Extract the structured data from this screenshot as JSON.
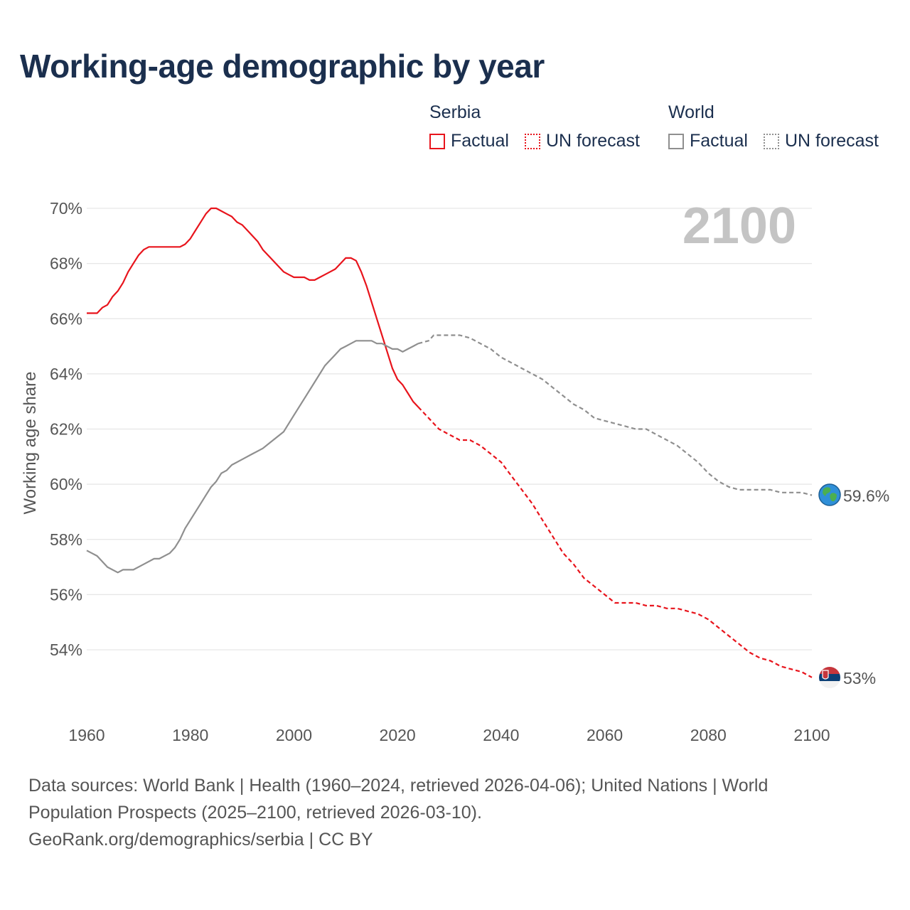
{
  "title": "Working-age demographic by year",
  "legend": {
    "groups": [
      {
        "name": "Serbia",
        "factual": "Factual",
        "forecast": "UN forecast"
      },
      {
        "name": "World",
        "factual": "Factual",
        "forecast": "UN forecast"
      }
    ]
  },
  "colors": {
    "serbia": "#e8141c",
    "world": "#8f8f8f",
    "title": "#1b2f4e"
  },
  "chart_data": {
    "type": "line",
    "title": "Working-age demographic by year",
    "xlabel": "",
    "ylabel": "Working age share",
    "xlim": [
      1960,
      2100
    ],
    "ylim": [
      52,
      70.5
    ],
    "x_ticks": [
      1960,
      1980,
      2000,
      2020,
      2040,
      2060,
      2080,
      2100
    ],
    "x_tick_labels": [
      "1960",
      "1980",
      "2000",
      "2020",
      "2040",
      "2060",
      "2080",
      "2100"
    ],
    "y_ticks": [
      54,
      56,
      58,
      60,
      62,
      64,
      66,
      68,
      70
    ],
    "y_tick_labels": [
      "54%",
      "56%",
      "58%",
      "60%",
      "62%",
      "64%",
      "66%",
      "68%",
      "70%"
    ],
    "current_year_label": "2100",
    "series": [
      {
        "name": "Serbia",
        "kind": "factual",
        "color": "#e8141c",
        "dash": "solid",
        "points": [
          [
            1960,
            66.2
          ],
          [
            1962,
            66.2
          ],
          [
            1963,
            66.4
          ],
          [
            1964,
            66.5
          ],
          [
            1965,
            66.8
          ],
          [
            1966,
            67.0
          ],
          [
            1967,
            67.3
          ],
          [
            1968,
            67.7
          ],
          [
            1969,
            68.0
          ],
          [
            1970,
            68.3
          ],
          [
            1971,
            68.5
          ],
          [
            1972,
            68.6
          ],
          [
            1974,
            68.6
          ],
          [
            1978,
            68.6
          ],
          [
            1979,
            68.7
          ],
          [
            1980,
            68.9
          ],
          [
            1981,
            69.2
          ],
          [
            1982,
            69.5
          ],
          [
            1983,
            69.8
          ],
          [
            1984,
            70.0
          ],
          [
            1985,
            70.0
          ],
          [
            1986,
            69.9
          ],
          [
            1987,
            69.8
          ],
          [
            1988,
            69.7
          ],
          [
            1989,
            69.5
          ],
          [
            1990,
            69.4
          ],
          [
            1991,
            69.2
          ],
          [
            1992,
            69.0
          ],
          [
            1993,
            68.8
          ],
          [
            1994,
            68.5
          ],
          [
            1995,
            68.3
          ],
          [
            1996,
            68.1
          ],
          [
            1997,
            67.9
          ],
          [
            1998,
            67.7
          ],
          [
            1999,
            67.6
          ],
          [
            2000,
            67.5
          ],
          [
            2002,
            67.5
          ],
          [
            2003,
            67.4
          ],
          [
            2004,
            67.4
          ],
          [
            2005,
            67.5
          ],
          [
            2006,
            67.6
          ],
          [
            2007,
            67.7
          ],
          [
            2008,
            67.8
          ],
          [
            2009,
            68.0
          ],
          [
            2010,
            68.2
          ],
          [
            2011,
            68.2
          ],
          [
            2012,
            68.1
          ],
          [
            2013,
            67.7
          ],
          [
            2014,
            67.2
          ],
          [
            2015,
            66.6
          ],
          [
            2016,
            66.0
          ],
          [
            2017,
            65.4
          ],
          [
            2018,
            64.8
          ],
          [
            2019,
            64.2
          ],
          [
            2020,
            63.8
          ],
          [
            2021,
            63.6
          ],
          [
            2022,
            63.3
          ],
          [
            2023,
            63.0
          ],
          [
            2024,
            62.8
          ]
        ]
      },
      {
        "name": "Serbia",
        "kind": "forecast",
        "color": "#e8141c",
        "dash": "dashed",
        "points": [
          [
            2024,
            62.8
          ],
          [
            2026,
            62.4
          ],
          [
            2028,
            62.0
          ],
          [
            2030,
            61.8
          ],
          [
            2032,
            61.6
          ],
          [
            2034,
            61.6
          ],
          [
            2036,
            61.4
          ],
          [
            2038,
            61.1
          ],
          [
            2040,
            60.8
          ],
          [
            2042,
            60.3
          ],
          [
            2044,
            59.8
          ],
          [
            2046,
            59.3
          ],
          [
            2048,
            58.7
          ],
          [
            2050,
            58.1
          ],
          [
            2052,
            57.5
          ],
          [
            2054,
            57.1
          ],
          [
            2056,
            56.6
          ],
          [
            2058,
            56.3
          ],
          [
            2060,
            56.0
          ],
          [
            2062,
            55.7
          ],
          [
            2064,
            55.7
          ],
          [
            2066,
            55.7
          ],
          [
            2068,
            55.6
          ],
          [
            2070,
            55.6
          ],
          [
            2072,
            55.5
          ],
          [
            2074,
            55.5
          ],
          [
            2076,
            55.4
          ],
          [
            2078,
            55.3
          ],
          [
            2080,
            55.1
          ],
          [
            2082,
            54.8
          ],
          [
            2084,
            54.5
          ],
          [
            2086,
            54.2
          ],
          [
            2088,
            53.9
          ],
          [
            2090,
            53.7
          ],
          [
            2092,
            53.6
          ],
          [
            2094,
            53.4
          ],
          [
            2096,
            53.3
          ],
          [
            2098,
            53.2
          ],
          [
            2100,
            53.0
          ]
        ]
      },
      {
        "name": "World",
        "kind": "factual",
        "color": "#8f8f8f",
        "dash": "solid",
        "points": [
          [
            1960,
            57.6
          ],
          [
            1962,
            57.4
          ],
          [
            1964,
            57.0
          ],
          [
            1966,
            56.8
          ],
          [
            1967,
            56.9
          ],
          [
            1969,
            56.9
          ],
          [
            1971,
            57.1
          ],
          [
            1973,
            57.3
          ],
          [
            1974,
            57.3
          ],
          [
            1976,
            57.5
          ],
          [
            1977,
            57.7
          ],
          [
            1978,
            58.0
          ],
          [
            1979,
            58.4
          ],
          [
            1980,
            58.7
          ],
          [
            1981,
            59.0
          ],
          [
            1982,
            59.3
          ],
          [
            1983,
            59.6
          ],
          [
            1984,
            59.9
          ],
          [
            1985,
            60.1
          ],
          [
            1986,
            60.4
          ],
          [
            1987,
            60.5
          ],
          [
            1988,
            60.7
          ],
          [
            1990,
            60.9
          ],
          [
            1992,
            61.1
          ],
          [
            1994,
            61.3
          ],
          [
            1996,
            61.6
          ],
          [
            1998,
            61.9
          ],
          [
            2000,
            62.5
          ],
          [
            2002,
            63.1
          ],
          [
            2004,
            63.7
          ],
          [
            2006,
            64.3
          ],
          [
            2008,
            64.7
          ],
          [
            2009,
            64.9
          ],
          [
            2010,
            65.0
          ],
          [
            2011,
            65.1
          ],
          [
            2012,
            65.2
          ],
          [
            2015,
            65.2
          ],
          [
            2016,
            65.1
          ],
          [
            2017,
            65.1
          ],
          [
            2018,
            65.0
          ],
          [
            2019,
            64.9
          ],
          [
            2020,
            64.9
          ],
          [
            2021,
            64.8
          ],
          [
            2022,
            64.9
          ],
          [
            2023,
            65.0
          ],
          [
            2024,
            65.1
          ]
        ]
      },
      {
        "name": "World",
        "kind": "forecast",
        "color": "#8f8f8f",
        "dash": "dashed",
        "points": [
          [
            2024,
            65.1
          ],
          [
            2026,
            65.2
          ],
          [
            2027,
            65.4
          ],
          [
            2032,
            65.4
          ],
          [
            2034,
            65.3
          ],
          [
            2036,
            65.1
          ],
          [
            2038,
            64.9
          ],
          [
            2040,
            64.6
          ],
          [
            2042,
            64.4
          ],
          [
            2044,
            64.2
          ],
          [
            2046,
            64.0
          ],
          [
            2048,
            63.8
          ],
          [
            2050,
            63.5
          ],
          [
            2052,
            63.2
          ],
          [
            2054,
            62.9
          ],
          [
            2056,
            62.7
          ],
          [
            2058,
            62.4
          ],
          [
            2060,
            62.3
          ],
          [
            2062,
            62.2
          ],
          [
            2064,
            62.1
          ],
          [
            2066,
            62.0
          ],
          [
            2068,
            62.0
          ],
          [
            2070,
            61.8
          ],
          [
            2072,
            61.6
          ],
          [
            2074,
            61.4
          ],
          [
            2076,
            61.1
          ],
          [
            2078,
            60.8
          ],
          [
            2080,
            60.4
          ],
          [
            2082,
            60.1
          ],
          [
            2084,
            59.9
          ],
          [
            2086,
            59.8
          ],
          [
            2090,
            59.8
          ],
          [
            2092,
            59.8
          ],
          [
            2094,
            59.7
          ],
          [
            2098,
            59.7
          ],
          [
            2100,
            59.6
          ]
        ]
      }
    ],
    "end_labels": [
      {
        "series": "World",
        "value": 59.6,
        "label": "59.6%",
        "color": "#999999",
        "marker": "globe-icon"
      },
      {
        "series": "Serbia",
        "value": 53.0,
        "label": "53%",
        "color": "#e8141c",
        "marker": "serbia-flag-icon"
      }
    ]
  },
  "footer": {
    "line1": "Data sources: World Bank | Health (1960–2024, retrieved 2026-04-06); United Nations | World",
    "line2": "Population Prospects (2025–2100, retrieved 2026-03-10).",
    "line3": "GeoRank.org/demographics/serbia | CC BY"
  }
}
